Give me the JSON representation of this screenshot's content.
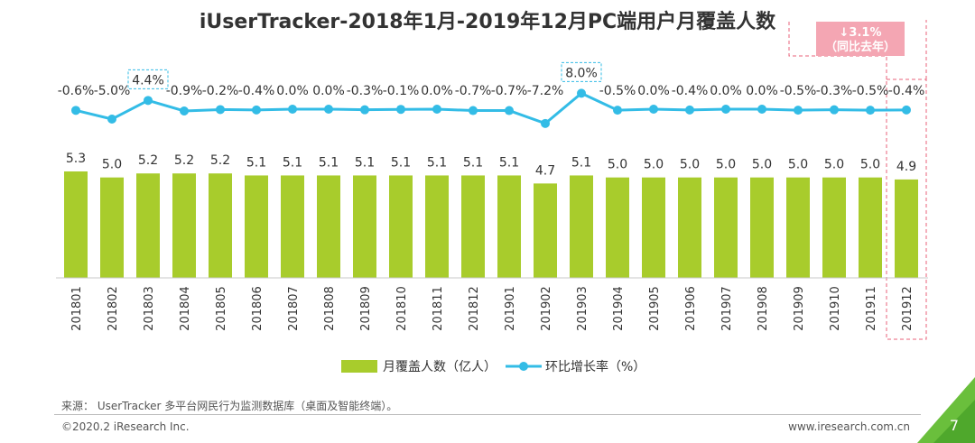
{
  "title": "iUserTracker-2018年1月-2019年12月PC端用户月覆盖人数",
  "callout": {
    "line1": "↓3.1%",
    "line2": "（同比去年）"
  },
  "source": "来源： UserTracker 多平台网民行为监测数据库（桌面及智能终端）。",
  "copyright": "©2020.2 iResearch Inc.",
  "website": "www.iresearch.com.cn",
  "page_number": "7",
  "colors": {
    "bar": "#a8cc2c",
    "line": "#33bce6",
    "highlight_box": "#e8607a",
    "callout_bg": "#f4a6b3",
    "corner": "#6abf3c"
  },
  "chart_data": {
    "type": "bar",
    "categories": [
      "201801",
      "201802",
      "201803",
      "201804",
      "201805",
      "201806",
      "201807",
      "201808",
      "201809",
      "201810",
      "201811",
      "201812",
      "201901",
      "201902",
      "201903",
      "201904",
      "201905",
      "201906",
      "201907",
      "201908",
      "201909",
      "201910",
      "201911",
      "201912"
    ],
    "series": [
      {
        "name": "月覆盖人数（亿人）",
        "type": "bar",
        "values": [
          5.3,
          5.0,
          5.2,
          5.2,
          5.2,
          5.1,
          5.1,
          5.1,
          5.1,
          5.1,
          5.1,
          5.1,
          5.1,
          4.7,
          5.1,
          5.0,
          5.0,
          5.0,
          5.0,
          5.0,
          5.0,
          5.0,
          5.0,
          4.9
        ]
      },
      {
        "name": "环比增长率（%）",
        "type": "line",
        "values": [
          -0.6,
          -5.0,
          4.4,
          -0.9,
          -0.2,
          -0.4,
          0.0,
          0.0,
          -0.3,
          -0.1,
          0.0,
          -0.7,
          -0.7,
          -7.2,
          8.0,
          -0.5,
          0.0,
          -0.4,
          0.0,
          0.0,
          -0.5,
          -0.3,
          -0.5,
          -0.4
        ],
        "labels": [
          "-0.6%",
          "-5.0%",
          "4.4%",
          "-0.9%",
          "-0.2%",
          "-0.4%",
          "0.0%",
          "0.0%",
          "-0.3%",
          "-0.1%",
          "0.0%",
          "-0.7%",
          "-0.7%",
          "-7.2%",
          "8.0%",
          "-0.5%",
          "0.0%",
          "-0.4%",
          "0.0%",
          "0.0%",
          "-0.5%",
          "-0.3%",
          "-0.5%",
          "-0.4%"
        ]
      }
    ],
    "bar_labels": [
      "5.3",
      "5.0",
      "5.2",
      "5.2",
      "5.2",
      "5.1",
      "5.1",
      "5.1",
      "5.1",
      "5.1",
      "5.1",
      "5.1",
      "5.1",
      "4.7",
      "5.1",
      "5.0",
      "5.0",
      "5.0",
      "5.0",
      "5.0",
      "5.0",
      "5.0",
      "5.0",
      "4.9"
    ],
    "highlighted_points": [
      "201803",
      "201903"
    ],
    "highlighted_category": "201912",
    "legend": {
      "position": "bottom"
    }
  }
}
